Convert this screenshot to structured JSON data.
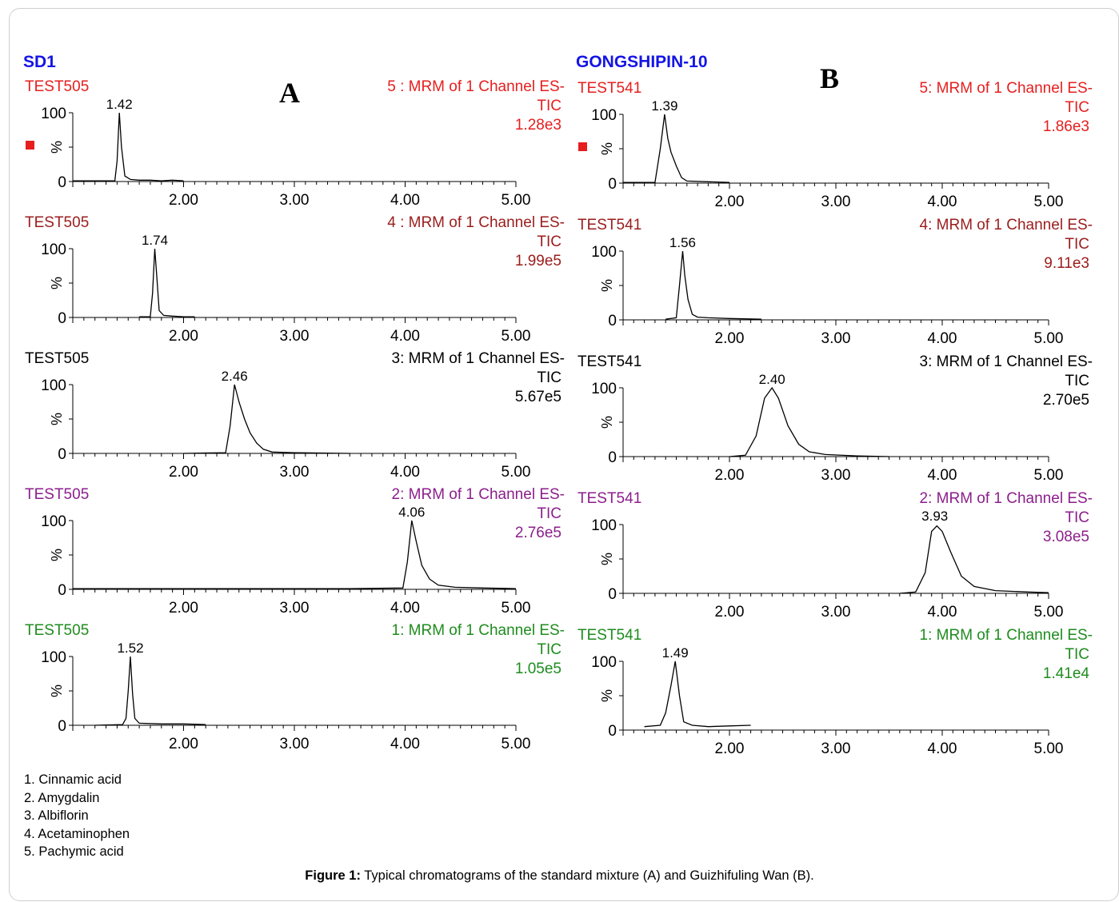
{
  "panels": [
    {
      "id": "A",
      "letter": "A",
      "sample": "SD1",
      "sample_color": "#1414e6",
      "chart_data": [
        {
          "type": "line",
          "sample_label": "TEST505",
          "channel": "5 : MRM of 1 Channel ES-",
          "mode": "TIC",
          "intensity": "1.28e3",
          "color": "#e61e1e",
          "peak_rt": 1.42,
          "peak_label": "1.42",
          "x": [
            1.0,
            1.38,
            1.4,
            1.42,
            1.44,
            1.47,
            1.52,
            1.6,
            1.7,
            1.8,
            1.9,
            2.0
          ],
          "y": [
            1,
            1,
            30,
            100,
            50,
            8,
            3,
            2,
            2,
            1,
            2,
            1
          ],
          "ylim": [
            0,
            100
          ],
          "x_ticks": [
            "2.00",
            "3.00",
            "4.00",
            "5.00"
          ],
          "y_ticks": [
            "0",
            "%",
            "100"
          ],
          "marker": true
        },
        {
          "type": "line",
          "sample_label": "TEST505",
          "channel": "4 : MRM of 1 Channel ES-",
          "mode": "TIC",
          "intensity": "1.99e5",
          "color": "#9b1c1c",
          "peak_rt": 1.74,
          "peak_label": "1.74",
          "x": [
            1.6,
            1.7,
            1.72,
            1.74,
            1.76,
            1.78,
            1.82,
            1.9,
            2.0,
            2.1
          ],
          "y": [
            1,
            1,
            35,
            100,
            55,
            10,
            3,
            2,
            1,
            1
          ],
          "ylim": [
            0,
            100
          ],
          "x_ticks": [
            "2.00",
            "3.00",
            "4.00",
            "5.00"
          ],
          "y_ticks": [
            "0",
            "%",
            "100"
          ],
          "marker": false
        },
        {
          "type": "line",
          "sample_label": "TEST505",
          "channel": "3: MRM of 1 Channel ES-",
          "mode": "TIC",
          "intensity": "5.67e5",
          "color": "#000000",
          "peak_rt": 2.46,
          "peak_label": "2.46",
          "x": [
            2.0,
            2.38,
            2.42,
            2.46,
            2.5,
            2.55,
            2.6,
            2.66,
            2.72,
            2.8,
            3.0,
            3.5
          ],
          "y": [
            0,
            1,
            40,
            100,
            75,
            50,
            30,
            15,
            6,
            2,
            1,
            0
          ],
          "ylim": [
            0,
            100
          ],
          "x_ticks": [
            "2.00",
            "3.00",
            "4.00",
            "5.00"
          ],
          "y_ticks": [
            "0",
            "%",
            "100"
          ],
          "marker": false
        },
        {
          "type": "line",
          "sample_label": "TEST505",
          "channel": "2: MRM of 1 Channel ES-",
          "mode": "TIC",
          "intensity": "2.76e5",
          "color": "#8c1e8c",
          "peak_rt": 4.06,
          "peak_label": "4.06",
          "x": [
            1.0,
            3.5,
            3.98,
            4.02,
            4.06,
            4.1,
            4.15,
            4.22,
            4.3,
            4.45,
            4.7,
            5.0
          ],
          "y": [
            1,
            1,
            2,
            40,
            100,
            70,
            35,
            15,
            6,
            3,
            2,
            1
          ],
          "ylim": [
            0,
            100
          ],
          "x_ticks": [
            "2.00",
            "3.00",
            "4.00",
            "5.00"
          ],
          "y_ticks": [
            "0",
            "%",
            "100"
          ],
          "marker": false
        },
        {
          "type": "line",
          "sample_label": "TEST505",
          "channel": "1: MRM of 1 Channel ES-",
          "mode": "TIC",
          "intensity": "1.05e5",
          "color": "#1e8c1e",
          "peak_rt": 1.52,
          "peak_label": "1.52",
          "x": [
            1.2,
            1.45,
            1.48,
            1.5,
            1.52,
            1.54,
            1.56,
            1.6,
            1.8,
            2.0,
            2.2
          ],
          "y": [
            0,
            1,
            10,
            50,
            100,
            45,
            10,
            3,
            2,
            2,
            1
          ],
          "ylim": [
            0,
            100
          ],
          "x_ticks": [
            "2.00",
            "3.00",
            "4.00",
            "5.00"
          ],
          "y_ticks": [
            "0",
            "%",
            "100"
          ],
          "marker": false
        }
      ]
    },
    {
      "id": "B",
      "letter": "B",
      "sample": "GONGSHIPIN-10",
      "sample_color": "#1414e6",
      "chart_data": [
        {
          "type": "line",
          "sample_label": "TEST541",
          "channel": "5: MRM of 1 Channel ES-",
          "mode": "TIC",
          "intensity": "1.86e3",
          "color": "#e61e1e",
          "peak_rt": 1.39,
          "peak_label": "1.39",
          "x": [
            1.0,
            1.3,
            1.35,
            1.39,
            1.42,
            1.45,
            1.5,
            1.55,
            1.6,
            1.8,
            2.0
          ],
          "y": [
            1,
            1,
            50,
            100,
            65,
            45,
            25,
            8,
            3,
            2,
            1
          ],
          "ylim": [
            0,
            100
          ],
          "x_ticks": [
            "2.00",
            "3.00",
            "4.00",
            "5.00"
          ],
          "y_ticks": [
            "0",
            "%",
            "100"
          ],
          "marker": true
        },
        {
          "type": "line",
          "sample_label": "TEST541",
          "channel": "4: MRM of 1 Channel ES-",
          "mode": "TIC",
          "intensity": "9.11e3",
          "color": "#9b1c1c",
          "peak_rt": 1.56,
          "peak_label": "1.56",
          "x": [
            1.4,
            1.5,
            1.53,
            1.56,
            1.58,
            1.61,
            1.65,
            1.7,
            1.8,
            2.0,
            2.3
          ],
          "y": [
            1,
            3,
            50,
            100,
            65,
            30,
            8,
            4,
            3,
            2,
            1
          ],
          "ylim": [
            0,
            100
          ],
          "x_ticks": [
            "2.00",
            "3.00",
            "4.00",
            "5.00"
          ],
          "y_ticks": [
            "0",
            "%",
            "100"
          ],
          "marker": false
        },
        {
          "type": "line",
          "sample_label": "TEST541",
          "channel": "3: MRM of 1 Channel ES-",
          "mode": "TIC",
          "intensity": "2.70e5",
          "color": "#000000",
          "peak_rt": 2.4,
          "peak_label": "2.40",
          "x": [
            2.0,
            2.15,
            2.25,
            2.33,
            2.4,
            2.46,
            2.55,
            2.65,
            2.75,
            2.9,
            3.2,
            3.5
          ],
          "y": [
            0,
            2,
            30,
            85,
            100,
            85,
            45,
            18,
            7,
            3,
            1,
            0
          ],
          "ylim": [
            0,
            100
          ],
          "x_ticks": [
            "2.00",
            "3.00",
            "4.00",
            "5.00"
          ],
          "y_ticks": [
            "0",
            "%",
            "100"
          ],
          "marker": false
        },
        {
          "type": "line",
          "sample_label": "TEST541",
          "channel": "2: MRM of 1 Channel ES-",
          "mode": "TIC",
          "intensity": "3.08e5",
          "color": "#8c1e8c",
          "peak_rt": 3.93,
          "peak_label": "3.93",
          "x": [
            3.6,
            3.75,
            3.84,
            3.9,
            3.95,
            4.0,
            4.08,
            4.18,
            4.3,
            4.5,
            4.8,
            5.0
          ],
          "y": [
            0,
            2,
            30,
            90,
            98,
            90,
            60,
            25,
            10,
            4,
            2,
            1
          ],
          "ylim": [
            0,
            100
          ],
          "x_ticks": [
            "2.00",
            "3.00",
            "4.00",
            "5.00"
          ],
          "y_ticks": [
            "0",
            "%",
            "100"
          ],
          "marker": false
        },
        {
          "type": "line",
          "sample_label": "TEST541",
          "channel": "1: MRM of 1 Channel ES-",
          "mode": "TIC",
          "intensity": "1.41e4",
          "color": "#1e8c1e",
          "peak_rt": 1.49,
          "peak_label": "1.49",
          "x": [
            1.2,
            1.35,
            1.4,
            1.45,
            1.49,
            1.53,
            1.57,
            1.65,
            1.8,
            2.0,
            2.2
          ],
          "y": [
            5,
            7,
            25,
            65,
            100,
            50,
            12,
            7,
            5,
            6,
            7
          ],
          "ylim": [
            0,
            100
          ],
          "x_ticks": [
            "2.00",
            "3.00",
            "4.00",
            "5.00"
          ],
          "y_ticks": [
            "0",
            "%",
            "100"
          ],
          "marker": false
        }
      ]
    }
  ],
  "x_range": [
    1.0,
    5.0
  ],
  "legend_items": [
    "1. Cinnamic acid",
    "2. Amygdalin",
    "3. Albiflorin",
    "4. Acetaminophen",
    "5. Pachymic acid"
  ],
  "caption": {
    "label": "Figure 1:",
    "text": " Typical chromatograms of the standard mixture (A) and Guizhifuling Wan (B)."
  }
}
